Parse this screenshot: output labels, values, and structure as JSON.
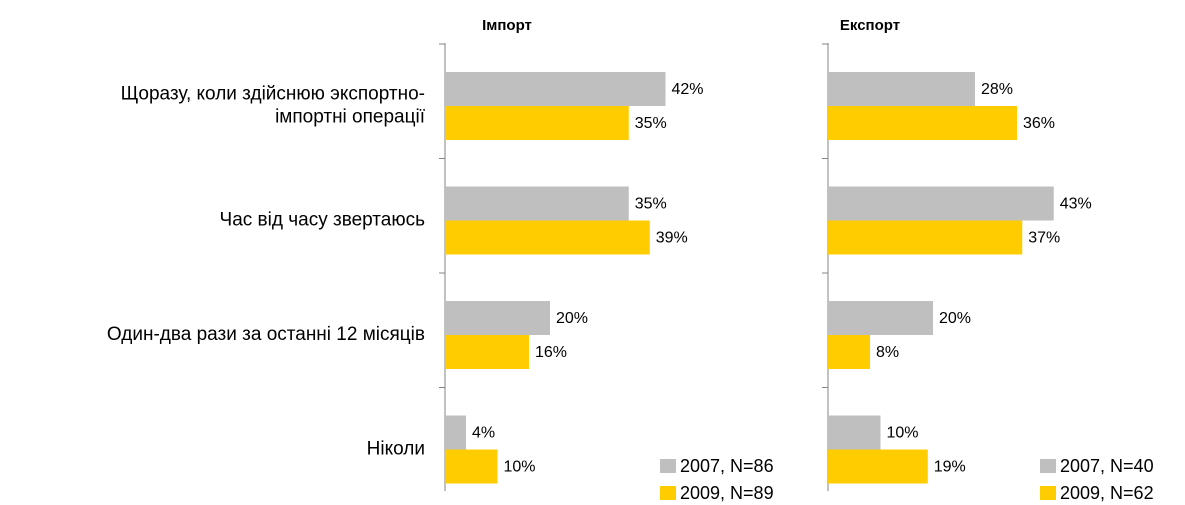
{
  "chart_data": [
    {
      "type": "bar",
      "title": "Імпорт",
      "categories": [
        "Щоразу, коли здійснюю экспортно-\nімпортні операції",
        "Час від часу звертаюсь",
        "Один-два рази за останні 12 місяців",
        "Ніколи"
      ],
      "series": [
        {
          "name": "2007, N=86",
          "color": "#bfbfbf",
          "values": [
            42,
            35,
            20,
            4
          ],
          "value_labels": [
            "42%",
            "35%",
            "20%",
            "4%"
          ]
        },
        {
          "name": "2009, N=89",
          "color": "#ffcc00",
          "values": [
            35,
            39,
            16,
            10
          ],
          "value_labels": [
            "35%",
            "39%",
            "16%",
            "10%"
          ]
        }
      ]
    },
    {
      "type": "bar",
      "title": "Експорт",
      "series": [
        {
          "name": "2007, N=40",
          "color": "#bfbfbf",
          "values": [
            28,
            43,
            20,
            10
          ],
          "value_labels": [
            "28%",
            "43%",
            "20%",
            "10%"
          ]
        },
        {
          "name": "2009, N=62",
          "color": "#ffcc00",
          "values": [
            36,
            37,
            8,
            19
          ],
          "value_labels": [
            "36%",
            "37%",
            "8%",
            "19%"
          ]
        }
      ]
    }
  ]
}
